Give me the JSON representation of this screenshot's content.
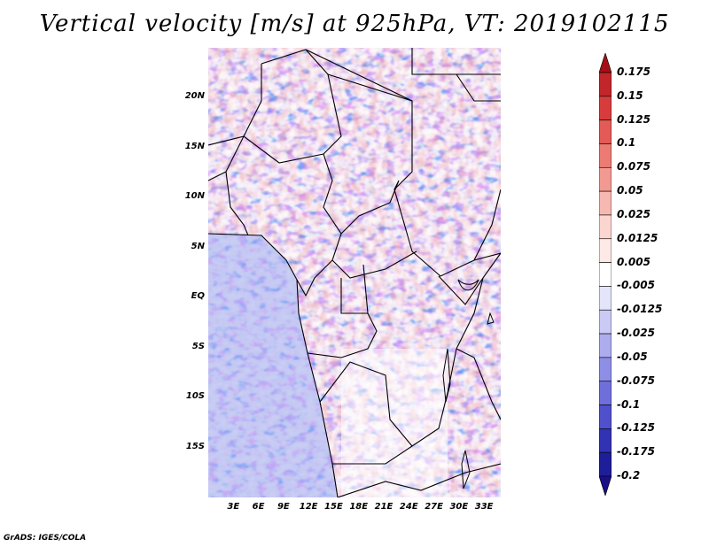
{
  "title": "Vertical velocity [m/s] at 925hPa, VT: 2019102115",
  "footer": "GrADS: IGES/COLA",
  "lat_labels": [
    "20N",
    "15N",
    "10N",
    "5N",
    "EQ",
    "5S",
    "10S",
    "15S"
  ],
  "lon_labels": [
    "3E",
    "6E",
    "9E",
    "12E",
    "15E",
    "18E",
    "21E",
    "24E",
    "27E",
    "30E",
    "33E"
  ],
  "colorbar": {
    "levels": [
      "0.175",
      "0.15",
      "0.125",
      "0.1",
      "0.075",
      "0.05",
      "0.025",
      "0.0125",
      "0.005",
      "-0.005",
      "-0.0125",
      "-0.025",
      "-0.05",
      "-0.075",
      "-0.1",
      "-0.125",
      "-0.175",
      "-0.2"
    ],
    "colors": [
      "#a50f15",
      "#c0262a",
      "#d73c3c",
      "#e35a56",
      "#ec7b73",
      "#f29a92",
      "#f7b8b1",
      "#fbd6d1",
      "#fde9e6",
      "#ffffff",
      "#e4e4fb",
      "#cacaf5",
      "#acacee",
      "#8e8ee6",
      "#6f6fdb",
      "#5050cc",
      "#3232b5",
      "#1e1e9a",
      "#1a0f85"
    ]
  },
  "map": {
    "lon_range": [
      0,
      35
    ],
    "lat_range": [
      -20,
      25
    ],
    "ocean_color": "#c8cdf3",
    "land_color": "#fdf7f7"
  }
}
